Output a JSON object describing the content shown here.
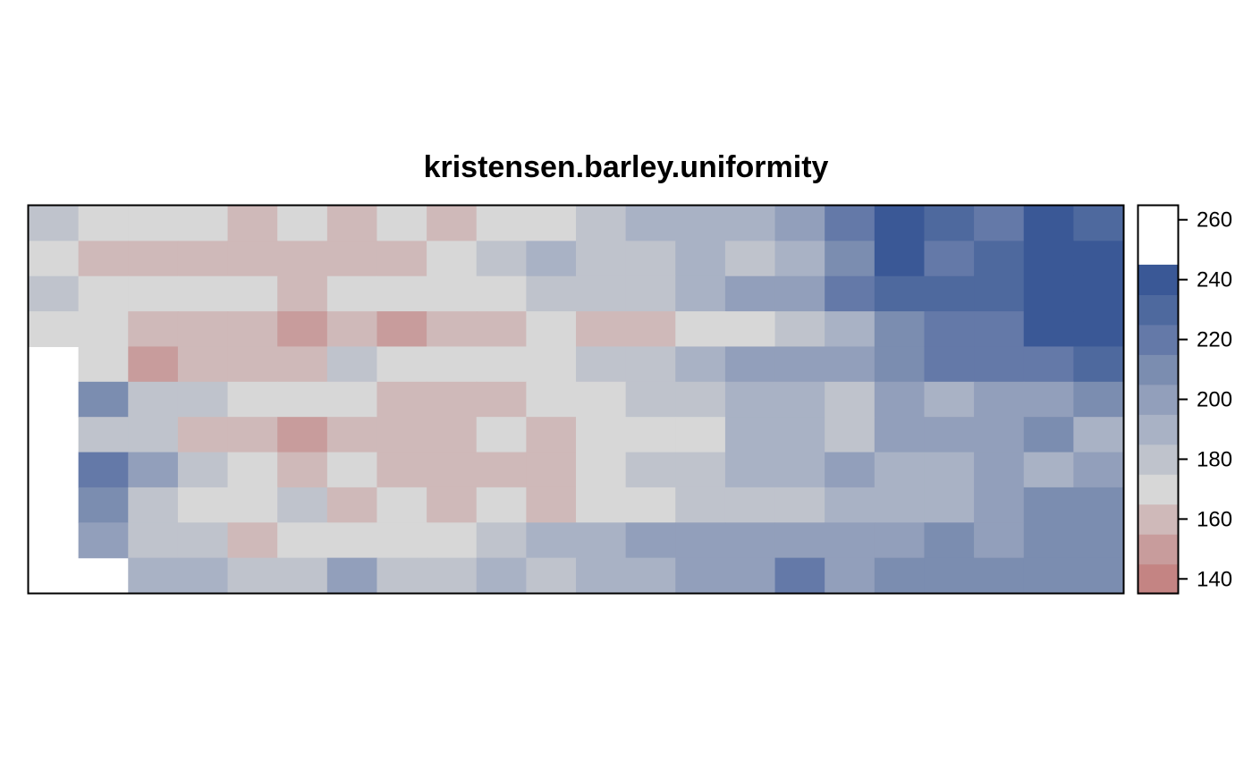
{
  "chart_data": {
    "type": "heatmap",
    "title": "kristensen.barley.uniformity",
    "xlabel": "",
    "ylabel": "",
    "n_cols": 22,
    "n_rows": 11,
    "legend": {
      "placement": "right",
      "breaks": [
        135,
        145,
        155,
        165,
        175,
        185,
        195,
        205,
        215,
        225,
        235,
        245,
        255,
        265
      ],
      "ticks": [
        "140",
        "160",
        "180",
        "200",
        "220",
        "240",
        "260"
      ],
      "tick_values": [
        140,
        160,
        180,
        200,
        220,
        240,
        260
      ],
      "colors": [
        "#C48483",
        "#C89C9C",
        "#CFB9B9",
        "#D7D7D7",
        "#BFC3CC",
        "#A9B2C5",
        "#929FBB",
        "#7B8DB0",
        "#6479A8",
        "#4E699E",
        "#3A5896"
      ]
    },
    "grid": [
      [
        180,
        170,
        170,
        170,
        160,
        170,
        160,
        170,
        160,
        170,
        170,
        180,
        190,
        190,
        190,
        200,
        220,
        240,
        230,
        220,
        240,
        230
      ],
      [
        170,
        160,
        160,
        160,
        160,
        160,
        160,
        160,
        170,
        180,
        190,
        180,
        180,
        190,
        180,
        190,
        210,
        240,
        220,
        230,
        240,
        260
      ],
      [
        180,
        170,
        170,
        170,
        170,
        160,
        170,
        170,
        170,
        170,
        180,
        180,
        180,
        190,
        200,
        200,
        220,
        230,
        230,
        230,
        240,
        240
      ],
      [
        170,
        170,
        160,
        160,
        160,
        150,
        160,
        150,
        160,
        160,
        170,
        160,
        160,
        170,
        170,
        180,
        190,
        210,
        220,
        220,
        240,
        240
      ],
      [
        null,
        170,
        150,
        160,
        160,
        160,
        180,
        170,
        170,
        170,
        170,
        180,
        180,
        190,
        200,
        200,
        200,
        210,
        220,
        220,
        220,
        230
      ],
      [
        null,
        210,
        180,
        180,
        170,
        170,
        170,
        160,
        160,
        160,
        170,
        170,
        180,
        180,
        190,
        190,
        180,
        200,
        190,
        200,
        200,
        210
      ],
      [
        null,
        180,
        180,
        160,
        160,
        150,
        160,
        160,
        160,
        170,
        160,
        170,
        170,
        170,
        190,
        190,
        180,
        200,
        200,
        200,
        210,
        190
      ],
      [
        null,
        220,
        200,
        180,
        170,
        160,
        170,
        160,
        160,
        160,
        160,
        170,
        180,
        180,
        190,
        190,
        200,
        190,
        190,
        200,
        190,
        200
      ],
      [
        null,
        210,
        180,
        170,
        170,
        180,
        160,
        170,
        160,
        170,
        160,
        170,
        170,
        180,
        180,
        180,
        190,
        190,
        190,
        200,
        210,
        210
      ],
      [
        null,
        200,
        180,
        180,
        160,
        170,
        170,
        170,
        170,
        180,
        190,
        190,
        200,
        200,
        200,
        200,
        200,
        200,
        210,
        200,
        210,
        210
      ],
      [
        null,
        null,
        190,
        190,
        180,
        180,
        200,
        180,
        180,
        190,
        180,
        190,
        190,
        200,
        200,
        220,
        200,
        210,
        210,
        210,
        210,
        210
      ]
    ]
  }
}
